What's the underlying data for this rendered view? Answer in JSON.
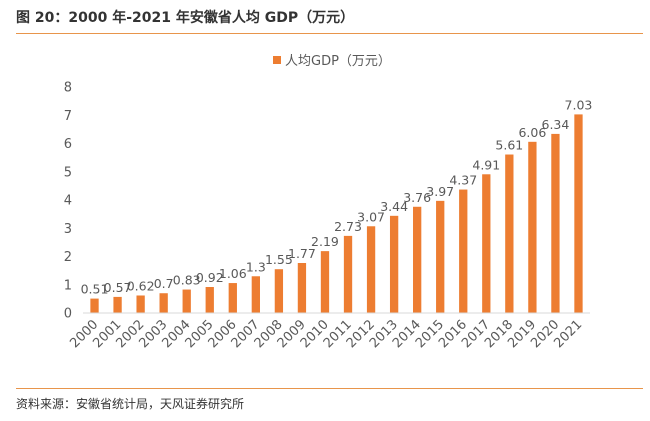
{
  "figure_title": "图 20：2000 年-2021 年安徽省人均 GDP（万元）",
  "source": "资料来源：安徽省统计局，天风证券研究所",
  "colors": {
    "bar": "#ed7d31",
    "rule": "#e8954b",
    "text": "#595959"
  },
  "chart_data": {
    "type": "bar",
    "title": "",
    "xlabel": "",
    "ylabel": "",
    "ylim": [
      0,
      8
    ],
    "yticks": [
      0,
      1,
      2,
      3,
      4,
      5,
      6,
      7,
      8
    ],
    "grid": false,
    "legend_position": "top-center",
    "categories": [
      "2000",
      "2001",
      "2002",
      "2003",
      "2004",
      "2005",
      "2006",
      "2007",
      "2008",
      "2009",
      "2010",
      "2011",
      "2012",
      "2013",
      "2014",
      "2015",
      "2016",
      "2017",
      "2018",
      "2019",
      "2020",
      "2021"
    ],
    "series": [
      {
        "name": "人均GDP（万元）",
        "values": [
          0.51,
          0.57,
          0.62,
          0.7,
          0.83,
          0.92,
          1.06,
          1.3,
          1.55,
          1.77,
          2.19,
          2.73,
          3.07,
          3.44,
          3.76,
          3.97,
          4.37,
          4.91,
          5.61,
          6.06,
          6.34,
          7.03
        ]
      }
    ]
  }
}
